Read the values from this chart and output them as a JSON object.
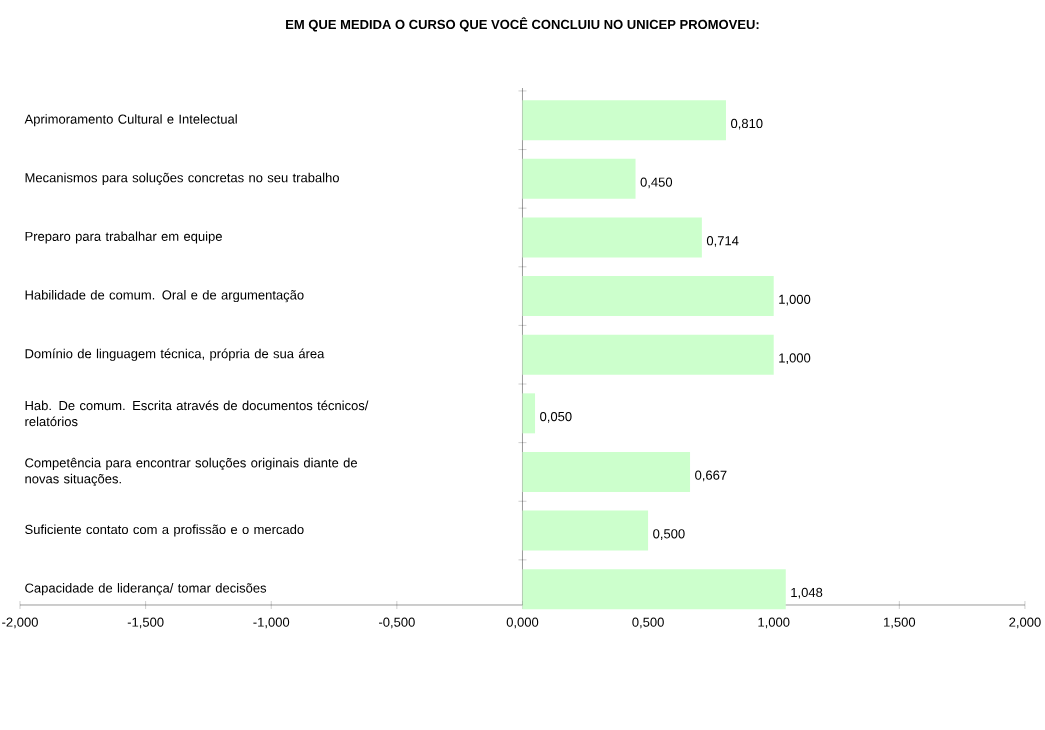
{
  "chart_data": {
    "type": "bar",
    "orientation": "horizontal",
    "title": "EM QUE MEDIDA O CURSO QUE VOCÊ CONCLUIU NO UNICEP PROMOVEU:",
    "categories": [
      "Aprimoramento Cultural e Intelectual",
      "Mecanismos para soluções concretas no seu trabalho",
      "Preparo para trabalhar em equipe",
      "Habilidade de comum. Oral e de argumentação",
      "Domínio de linguagem técnica, própria de sua área",
      "Hab. De comum. Escrita através de documentos técnicos/ relatórios",
      "Competência para encontrar soluções originais diante de novas situações.",
      "Suficiente contato com a profissão e o mercado",
      "Capacidade de liderança/ tomar decisões"
    ],
    "values": [
      0.81,
      0.45,
      0.714,
      1.0,
      1.0,
      0.05,
      0.667,
      0.5,
      1.048
    ],
    "value_labels": [
      "0,810",
      "0,450",
      "0,714",
      "1,000",
      "1,000",
      "0,050",
      "0,667",
      "0,500",
      "1,048"
    ],
    "color": "#ccffcc",
    "xlim": [
      -2,
      2
    ],
    "xticks": [
      {
        "value": -2,
        "label": "-2,000"
      },
      {
        "value": -1.5,
        "label": "-1,500"
      },
      {
        "value": -1,
        "label": "-1,000"
      },
      {
        "value": -0.5,
        "label": "-0,500"
      },
      {
        "value": 0,
        "label": "0,000"
      },
      {
        "value": 0.5,
        "label": "0,500"
      },
      {
        "value": 1,
        "label": "1,000"
      },
      {
        "value": 1.5,
        "label": "1,500"
      },
      {
        "value": 2,
        "label": "2,000"
      }
    ]
  }
}
